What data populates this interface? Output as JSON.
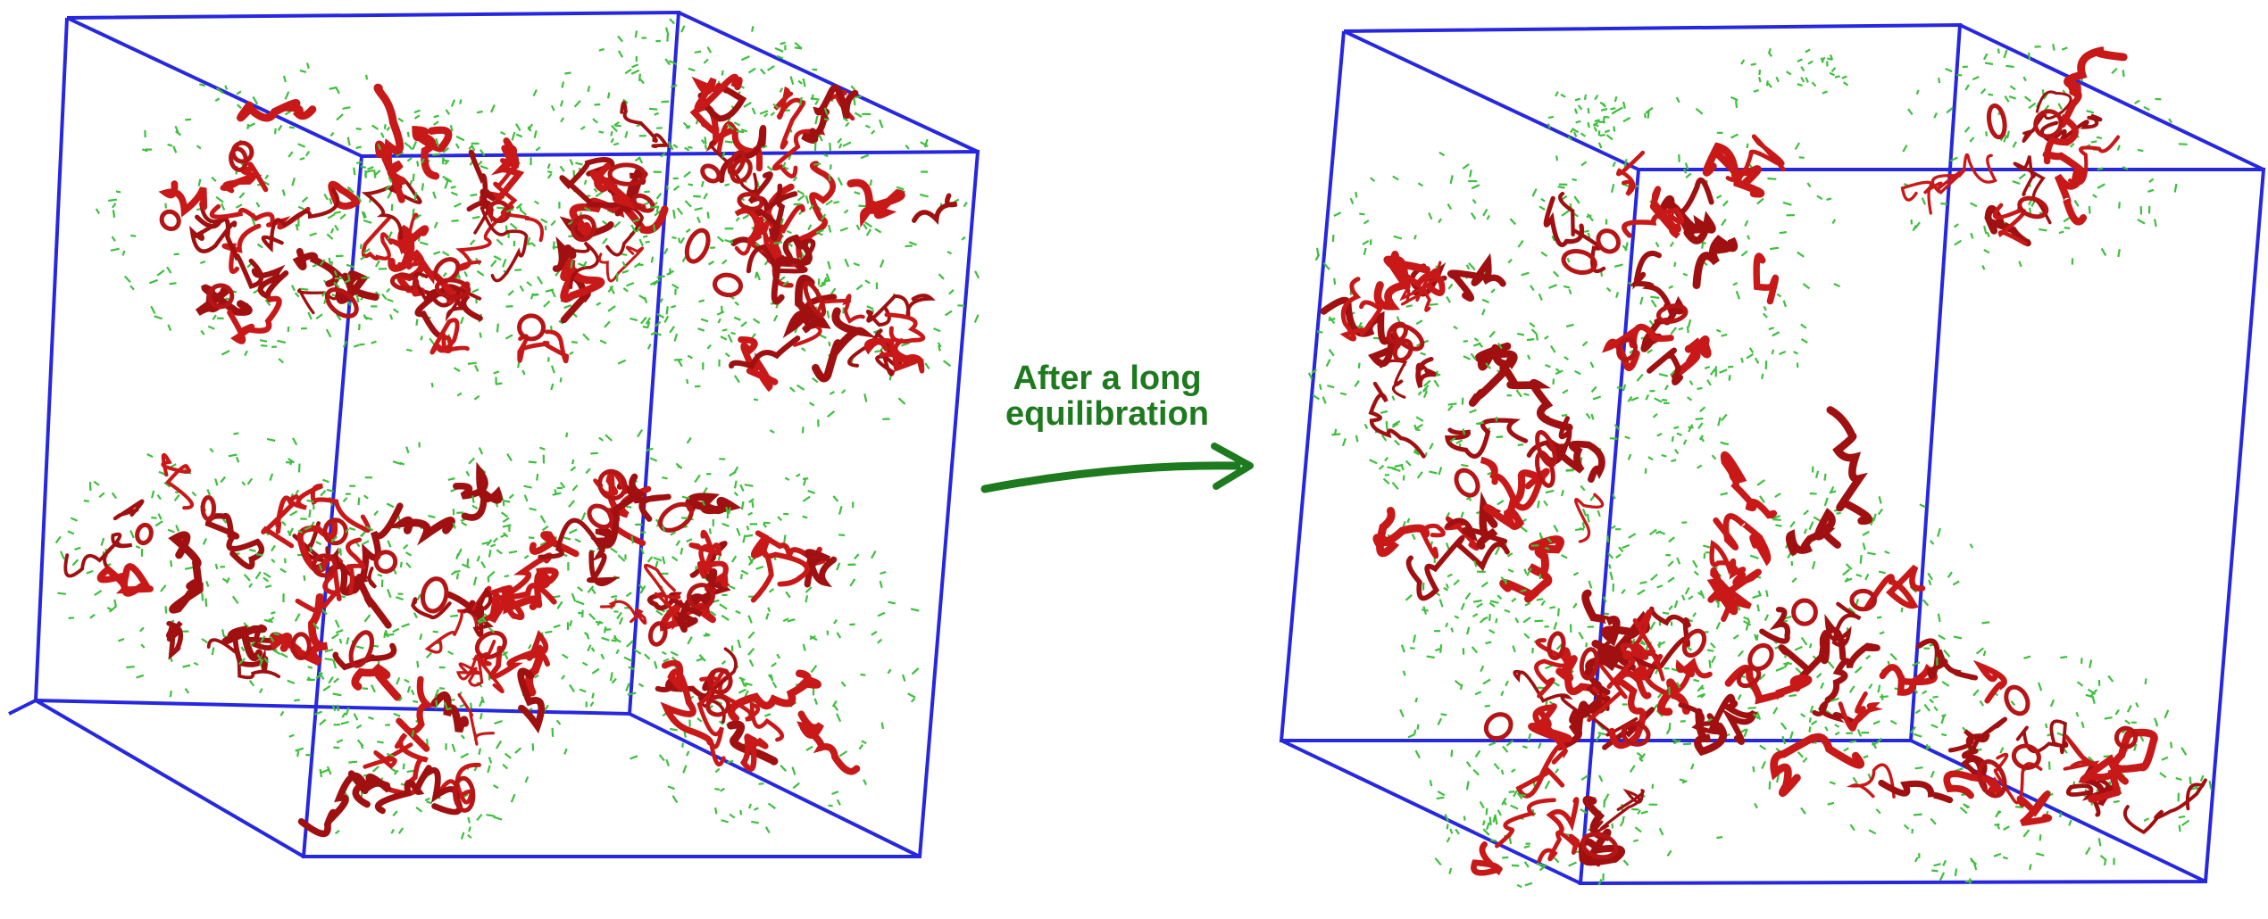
{
  "caption": {
    "line1": "After a long",
    "line2": "equilibration"
  },
  "colors": {
    "box_edges": "#2727e0",
    "protein": "#c81818",
    "solvent": "#3cbf3c",
    "caption": "#1e7a1e"
  },
  "panels": [
    {
      "name": "before-equilibration",
      "clusters": 2
    },
    {
      "name": "after-equilibration",
      "clusters": 3
    }
  ]
}
